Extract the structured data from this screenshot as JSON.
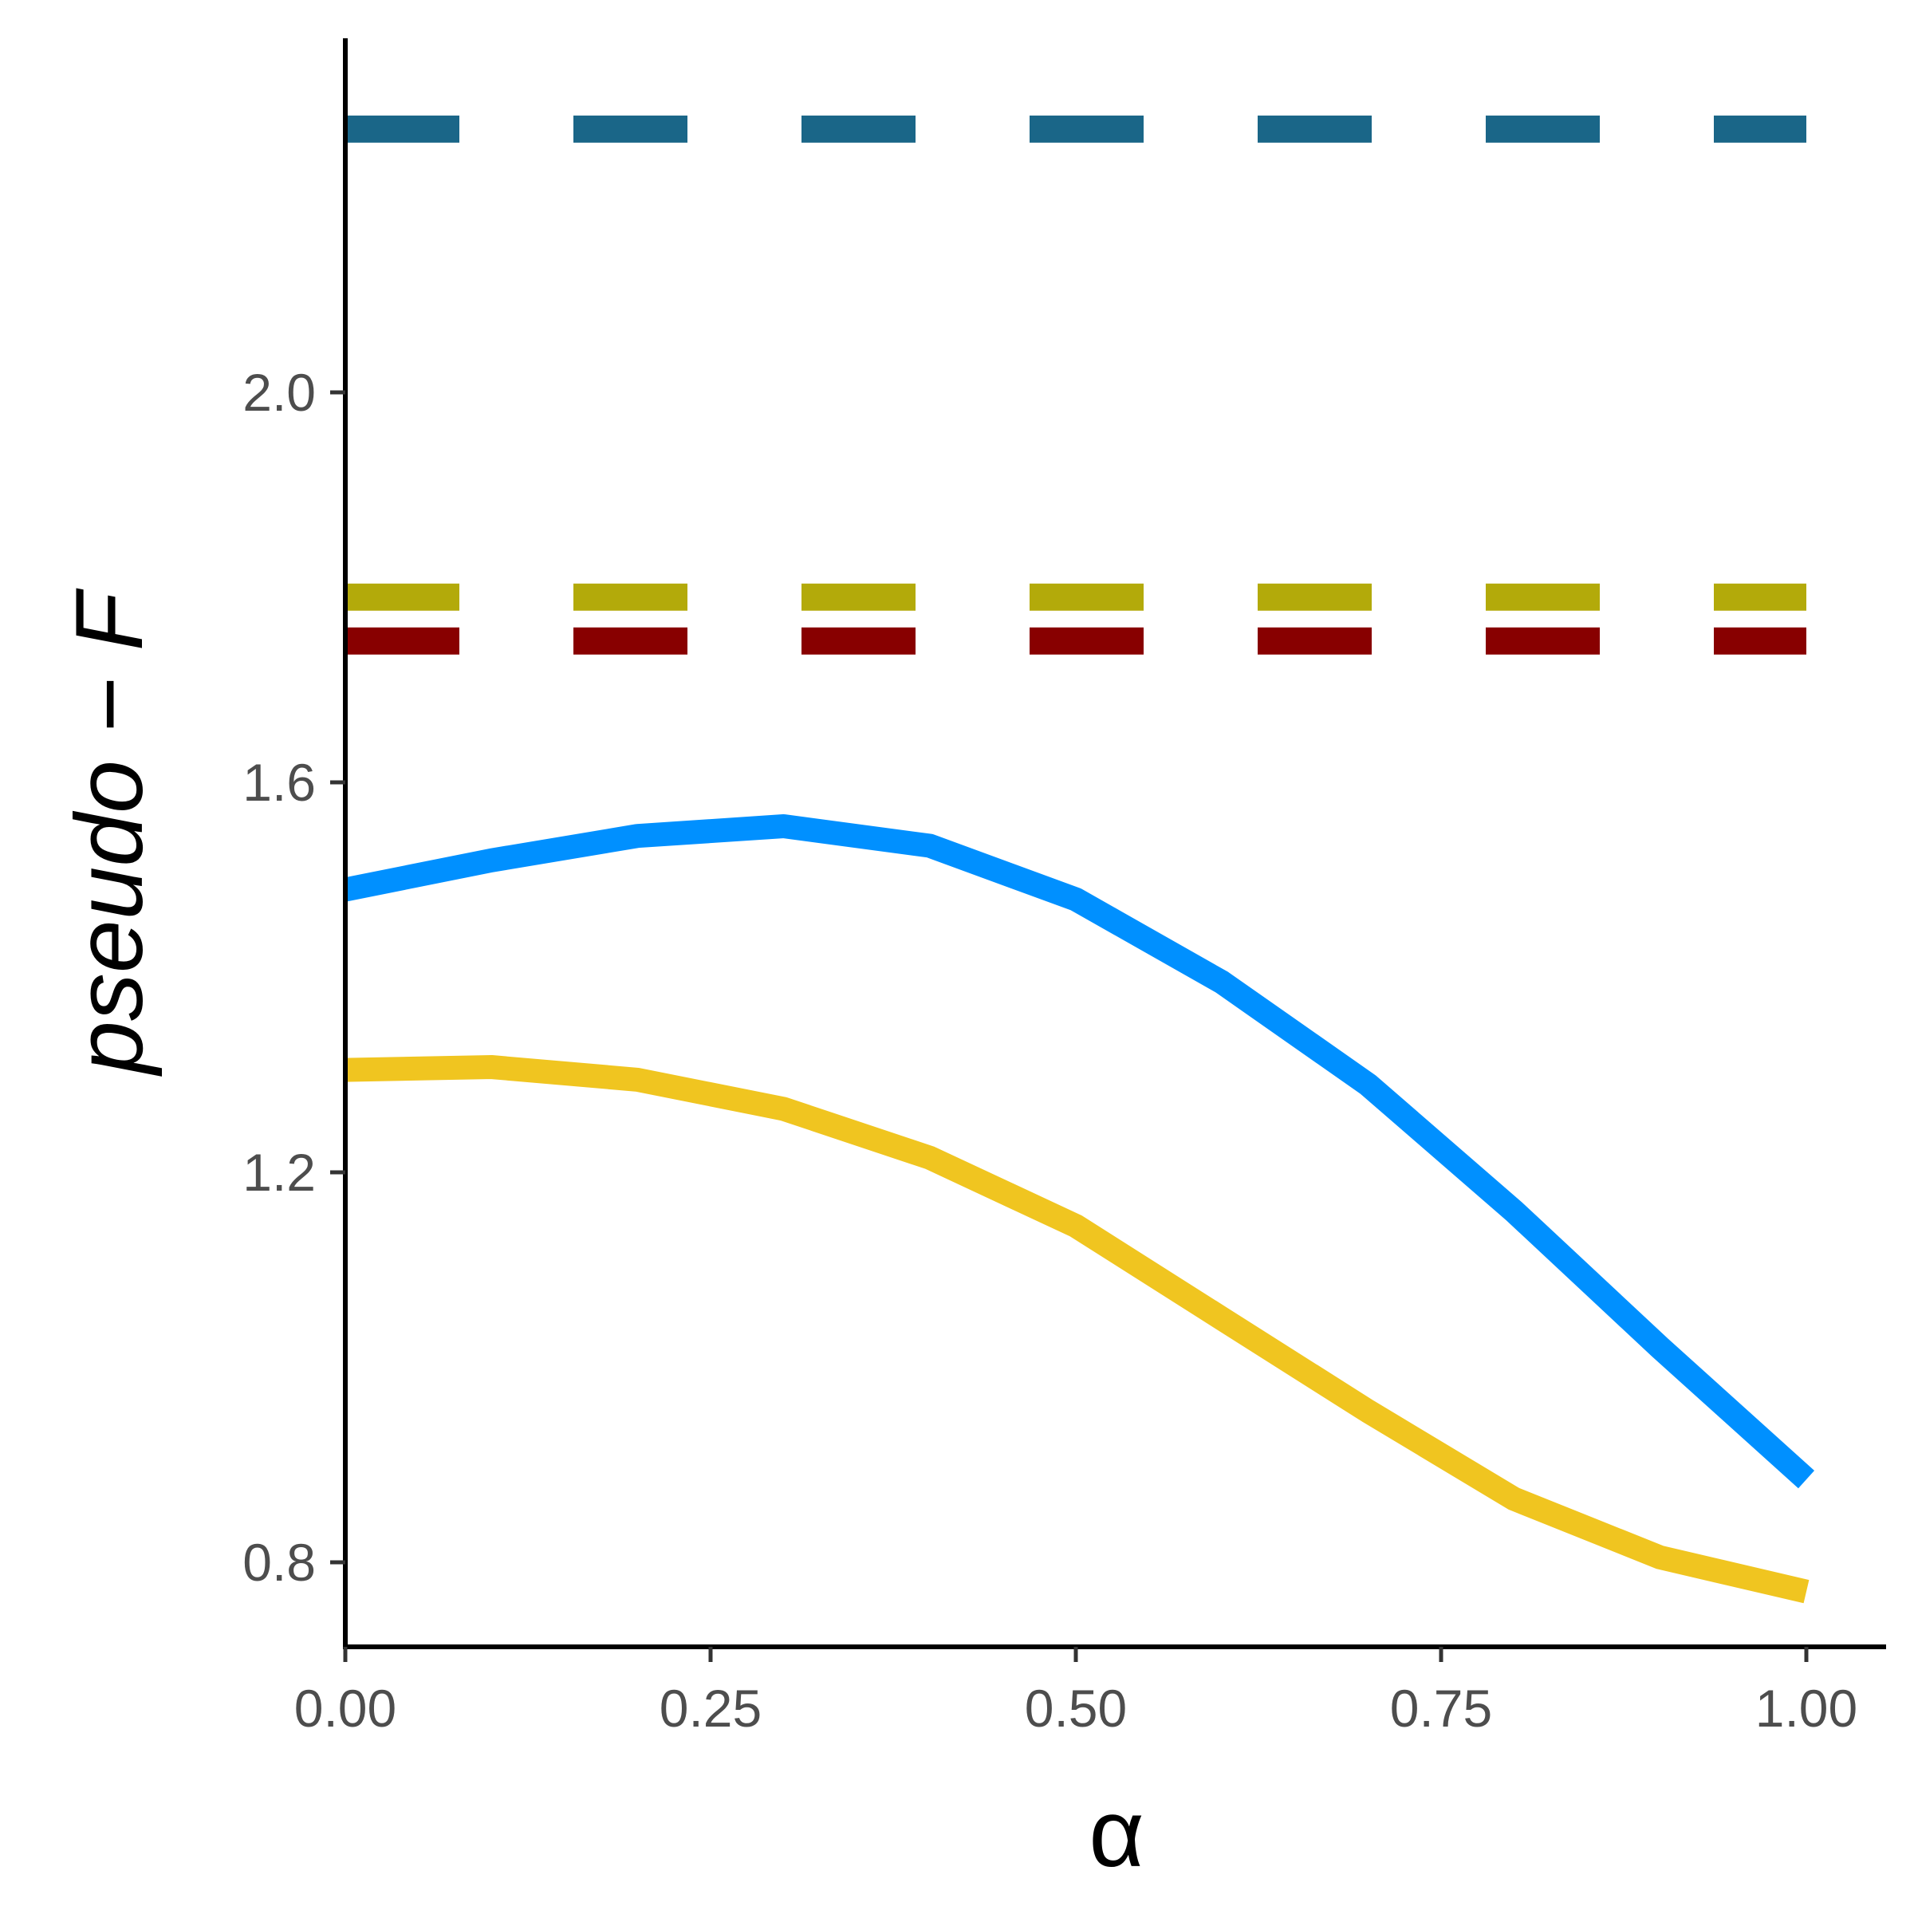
{
  "chart_data": {
    "type": "line",
    "xlabel": "α",
    "ylabel": "pseudo − F",
    "xlim": [
      0,
      1.05
    ],
    "ylim": [
      0.7,
      2.34
    ],
    "x_ticks": [
      0,
      0.25,
      0.5,
      0.75,
      1.0
    ],
    "x_tick_labels": [
      "0.00",
      "0.25",
      "0.50",
      "0.75",
      "1.00"
    ],
    "y_ticks": [
      0.8,
      1.2,
      1.6,
      2.0
    ],
    "y_tick_labels": [
      "0.8",
      "1.2",
      "1.6",
      "2.0"
    ],
    "grid": false,
    "legend": "none",
    "series": [
      {
        "style": "solid",
        "color": "#0090ff",
        "x": [
          0,
          0.1,
          0.2,
          0.3,
          0.4,
          0.5,
          0.6,
          0.7,
          0.8,
          0.9,
          1.0
        ],
        "y": [
          1.49,
          1.52,
          1.545,
          1.555,
          1.535,
          1.48,
          1.395,
          1.29,
          1.16,
          1.02,
          0.885
        ]
      },
      {
        "style": "solid",
        "color": "#f0c520",
        "x": [
          0,
          0.1,
          0.2,
          0.3,
          0.4,
          0.5,
          0.6,
          0.7,
          0.8,
          0.9,
          1.0
        ],
        "y": [
          1.305,
          1.308,
          1.295,
          1.265,
          1.215,
          1.145,
          1.05,
          0.955,
          0.865,
          0.805,
          0.77
        ]
      },
      {
        "style": "dashed",
        "color": "#1a6688",
        "x": [
          0,
          1.0
        ],
        "y": [
          2.27,
          2.27
        ]
      },
      {
        "style": "dashed",
        "color": "#b3aa0a",
        "x": [
          0,
          1.0
        ],
        "y": [
          1.79,
          1.79
        ]
      },
      {
        "style": "dashed",
        "color": "#880000",
        "x": [
          0,
          1.0
        ],
        "y": [
          1.745,
          1.745
        ]
      }
    ]
  }
}
